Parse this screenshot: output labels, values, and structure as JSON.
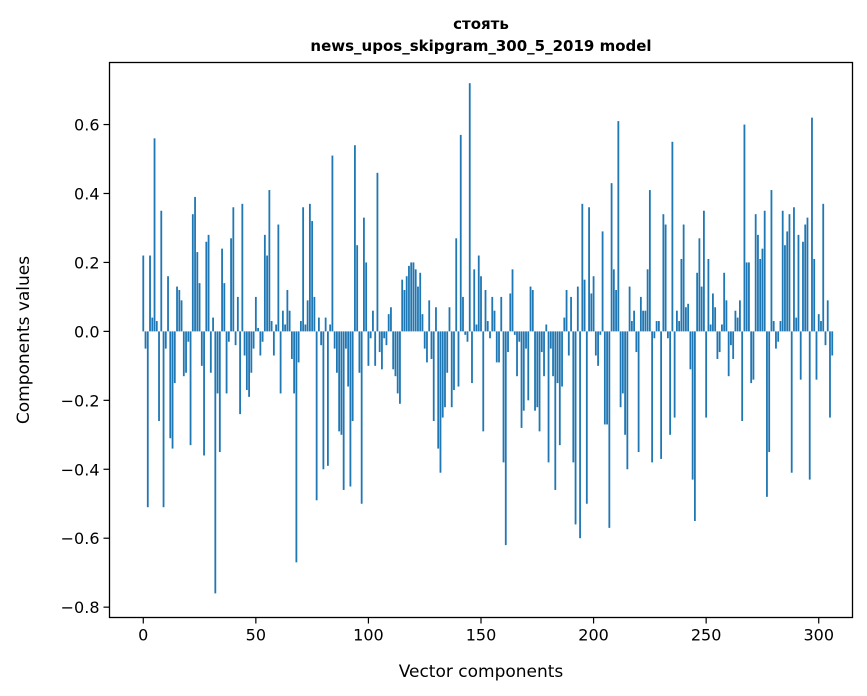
{
  "chart_data": {
    "type": "bar",
    "title_line1": "стоять",
    "title_line2": "news_upos_skipgram_300_5_2019 model",
    "xlabel": "Vector components",
    "ylabel": "Components values",
    "xlim": [
      -15,
      315
    ],
    "ylim": [
      -0.83,
      0.78
    ],
    "xticks": [
      0,
      50,
      100,
      150,
      200,
      250,
      300
    ],
    "xtick_labels": [
      "0",
      "50",
      "100",
      "150",
      "200",
      "250",
      "300"
    ],
    "yticks": [
      -0.8,
      -0.6,
      -0.4,
      -0.2,
      0.0,
      0.2,
      0.4,
      0.6
    ],
    "ytick_labels": [
      "−0.8",
      "−0.6",
      "−0.4",
      "−0.2",
      "0.0",
      "0.2",
      "0.4",
      "0.6"
    ],
    "bar_color": "#1f77b4",
    "values": [
      0.22,
      -0.05,
      -0.51,
      0.22,
      0.04,
      0.56,
      0.03,
      -0.26,
      0.35,
      -0.51,
      -0.05,
      0.16,
      -0.31,
      -0.34,
      -0.15,
      0.13,
      0.12,
      0.09,
      -0.13,
      -0.12,
      -0.03,
      -0.33,
      0.34,
      0.39,
      0.23,
      0.14,
      -0.1,
      -0.36,
      0.26,
      0.28,
      -0.12,
      0.04,
      -0.76,
      -0.18,
      -0.35,
      0.24,
      0.14,
      -0.18,
      -0.03,
      0.27,
      0.36,
      -0.04,
      0.1,
      -0.24,
      0.37,
      -0.07,
      -0.17,
      -0.19,
      -0.12,
      -0.05,
      0.1,
      0.01,
      -0.07,
      -0.03,
      0.28,
      0.22,
      0.41,
      0.03,
      -0.07,
      0.02,
      0.31,
      -0.18,
      0.06,
      0.02,
      0.12,
      0.06,
      -0.08,
      -0.18,
      -0.67,
      -0.09,
      0.03,
      0.36,
      0.02,
      0.09,
      0.37,
      0.32,
      0.1,
      -0.49,
      0.04,
      -0.04,
      -0.4,
      0.04,
      -0.39,
      0.02,
      0.51,
      -0.05,
      -0.12,
      -0.29,
      -0.3,
      -0.46,
      -0.05,
      -0.16,
      -0.45,
      -0.26,
      0.54,
      0.25,
      -0.12,
      -0.5,
      0.33,
      0.2,
      -0.1,
      -0.02,
      0.06,
      -0.1,
      0.46,
      -0.06,
      -0.11,
      -0.02,
      -0.04,
      0.05,
      0.07,
      -0.11,
      -0.13,
      -0.18,
      -0.21,
      0.15,
      0.12,
      0.16,
      0.19,
      0.2,
      0.2,
      0.18,
      0.13,
      0.17,
      0.05,
      -0.05,
      -0.09,
      0.09,
      -0.08,
      -0.26,
      0.07,
      -0.34,
      -0.41,
      -0.25,
      -0.22,
      -0.12,
      0.07,
      -0.22,
      -0.17,
      0.27,
      -0.16,
      0.57,
      0.1,
      -0.01,
      -0.03,
      0.72,
      -0.15,
      0.18,
      0.02,
      0.22,
      0.16,
      -0.29,
      0.12,
      0.03,
      -0.02,
      0.1,
      0.06,
      -0.09,
      -0.09,
      0.1,
      -0.38,
      -0.62,
      -0.06,
      0.11,
      0.18,
      -0.01,
      -0.13,
      -0.03,
      -0.28,
      -0.23,
      -0.05,
      -0.2,
      0.13,
      0.12,
      -0.23,
      -0.22,
      -0.29,
      -0.06,
      -0.13,
      0.02,
      -0.38,
      -0.05,
      -0.13,
      -0.46,
      -0.15,
      -0.33,
      -0.16,
      0.04,
      0.12,
      -0.07,
      0.1,
      -0.38,
      -0.56,
      0.13,
      -0.6,
      0.37,
      0.15,
      -0.5,
      0.36,
      0.11,
      0.16,
      -0.07,
      -0.1,
      -0.01,
      0.29,
      -0.27,
      -0.27,
      -0.57,
      0.43,
      0.18,
      0.12,
      0.61,
      -0.22,
      -0.18,
      -0.3,
      -0.4,
      0.13,
      0.03,
      0.06,
      -0.06,
      -0.35,
      0.1,
      0.06,
      0.06,
      0.18,
      0.41,
      -0.38,
      -0.02,
      0.03,
      0.03,
      -0.37,
      0.34,
      0.31,
      -0.02,
      -0.3,
      0.55,
      -0.25,
      0.06,
      0.03,
      0.21,
      0.31,
      0.07,
      0.08,
      -0.11,
      -0.43,
      -0.55,
      0.17,
      0.27,
      0.13,
      0.35,
      -0.25,
      0.21,
      0.02,
      0.11,
      0.07,
      -0.08,
      -0.06,
      0.02,
      0.17,
      0.09,
      -0.13,
      -0.04,
      -0.08,
      0.06,
      0.04,
      0.09,
      -0.26,
      0.6,
      0.2,
      0.2,
      -0.15,
      -0.14,
      0.34,
      0.28,
      0.21,
      0.24,
      0.35,
      -0.48,
      -0.35,
      0.41,
      0.03,
      -0.05,
      -0.03,
      0.03,
      0.35,
      0.25,
      0.29,
      0.34,
      -0.41,
      0.36,
      0.04,
      0.28,
      -0.14,
      0.26,
      0.31,
      0.33,
      -0.43,
      0.62,
      0.21,
      -0.14,
      0.05,
      0.03,
      0.37,
      -0.04,
      0.09,
      -0.25,
      -0.07
    ]
  }
}
